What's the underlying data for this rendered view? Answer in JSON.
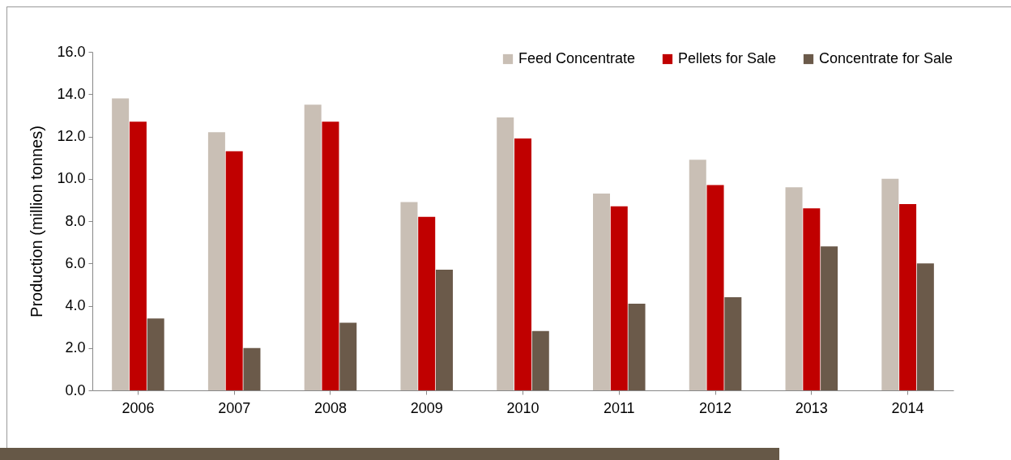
{
  "chart_data": {
    "type": "bar",
    "ylabel": "Production (million tonnes)",
    "categories": [
      "2006",
      "2007",
      "2008",
      "2009",
      "2010",
      "2011",
      "2012",
      "2013",
      "2014"
    ],
    "series": [
      {
        "name": "Feed Concentrate",
        "color": "#c9bfb5",
        "values": [
          13.8,
          12.2,
          13.5,
          8.9,
          12.9,
          9.3,
          10.9,
          9.6,
          10.0
        ]
      },
      {
        "name": "Pellets for Sale",
        "color": "#c00000",
        "values": [
          12.7,
          11.3,
          12.7,
          8.2,
          11.9,
          8.7,
          9.7,
          8.6,
          8.8
        ]
      },
      {
        "name": "Concentrate for Sale",
        "color": "#6b5a4a",
        "values": [
          3.4,
          2.0,
          3.2,
          5.7,
          2.8,
          4.1,
          4.4,
          6.8,
          6.0
        ]
      }
    ],
    "ylim": [
      0,
      16
    ],
    "yticks": [
      {
        "value": 0,
        "label": "0.0"
      },
      {
        "value": 2,
        "label": "2.0"
      },
      {
        "value": 4,
        "label": "4.0"
      },
      {
        "value": 6,
        "label": "6.0"
      },
      {
        "value": 8,
        "label": "8.0"
      },
      {
        "value": 10,
        "label": "10.0"
      },
      {
        "value": 12,
        "label": "12.0"
      },
      {
        "value": 14,
        "label": "14.0"
      },
      {
        "value": 16,
        "label": "16.0"
      }
    ],
    "grid": false,
    "legend": "top right"
  }
}
